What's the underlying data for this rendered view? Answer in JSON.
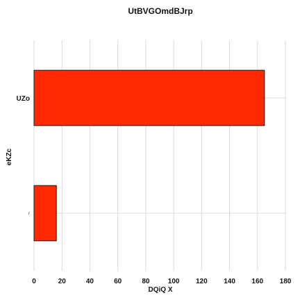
{
  "chart_data": {
    "type": "bar",
    "orientation": "horizontal",
    "title": "UtBVGOmdBJrp",
    "xlabel": "DQiQ  X",
    "ylabel": "eKZc",
    "categories": [
      "UZo",
      "r"
    ],
    "values": [
      165,
      16
    ],
    "xlim": [
      0,
      180
    ],
    "xticks": [
      0,
      20,
      40,
      60,
      80,
      100,
      120,
      140,
      160,
      180
    ],
    "grid": true,
    "bar_color": "#ff2a00",
    "bar_edge_color": "#1a1a1a"
  }
}
